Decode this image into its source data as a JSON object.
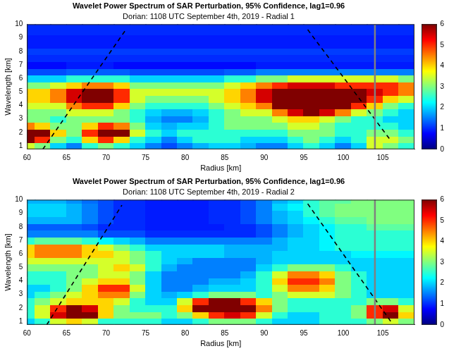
{
  "chart_data": [
    {
      "type": "heatmap",
      "title": "Wavelet Power Spectrum of SAR Perturbation, 95% Confidence, lag1=0.96",
      "subtitle": "Dorian: 1108 UTC September 4th, 2019 - Radial 1",
      "x_label": "Radius [km]",
      "y_label": "Wavelength [km]",
      "xlim": [
        60,
        109
      ],
      "ylim": [
        0.75,
        10
      ],
      "xticks": [
        60,
        65,
        70,
        75,
        80,
        85,
        90,
        95,
        100,
        105
      ],
      "yticks": [
        1,
        2,
        3,
        4,
        5,
        6,
        7,
        8,
        9,
        10
      ],
      "x": [
        60,
        62,
        64,
        66,
        68,
        70,
        72,
        74,
        76,
        78,
        80,
        82,
        84,
        86,
        88,
        90,
        92,
        94,
        96,
        98,
        100,
        102,
        104,
        106,
        108
      ],
      "y": [
        1,
        1.5,
        2,
        2.5,
        3,
        3.5,
        4,
        4.5,
        5,
        5.5,
        6,
        6.5,
        7,
        7.5,
        8,
        8.5,
        9,
        9.5,
        10
      ],
      "power": [
        [
          3.5,
          3,
          2,
          1.5,
          2.5,
          3,
          2.5,
          2,
          1.5,
          1.2,
          1.5,
          1.8,
          2,
          2,
          1.8,
          1.5,
          1.5,
          2,
          2.5,
          2,
          1.5,
          2,
          3.5,
          3,
          2.5
        ],
        [
          6,
          5,
          3,
          2.5,
          4,
          5,
          4,
          2.5,
          2,
          1.5,
          2,
          2.5,
          2.5,
          2.5,
          2,
          2,
          2,
          2.5,
          3,
          2.5,
          2,
          2.5,
          3.5,
          3.5,
          3
        ],
        [
          6,
          6,
          4,
          3,
          5,
          6,
          6,
          3.5,
          2.5,
          2,
          2.5,
          2.5,
          2.5,
          2.5,
          2.5,
          2.5,
          2.5,
          3,
          3,
          3,
          2.5,
          2.5,
          3,
          3,
          2.5
        ],
        [
          4.5,
          4,
          3,
          3,
          4,
          5,
          4.5,
          3,
          2,
          1.8,
          2,
          2,
          2.5,
          3,
          3,
          3,
          3,
          3.5,
          3.5,
          3,
          2.5,
          2.5,
          2.5,
          2.5,
          2
        ],
        [
          3,
          3,
          2.5,
          3,
          3,
          3,
          3,
          2.5,
          1.8,
          1.5,
          1.5,
          1.8,
          2.5,
          3,
          3,
          3,
          3.5,
          4,
          4,
          3.5,
          3,
          2.5,
          2.5,
          2,
          2
        ],
        [
          3,
          3,
          3,
          3.5,
          3.5,
          3.5,
          3,
          2.5,
          2,
          1.8,
          1.8,
          2,
          2.5,
          3,
          3.5,
          3.5,
          4.5,
          5.5,
          6,
          5.5,
          4.5,
          3.5,
          3,
          2.5,
          2
        ],
        [
          3.5,
          3.5,
          3.5,
          4.5,
          5,
          5,
          4,
          3,
          2.5,
          2.5,
          2.5,
          2.5,
          3,
          3.5,
          4,
          4.5,
          6,
          6,
          6,
          6,
          6,
          5,
          4,
          3,
          2.5
        ],
        [
          4,
          4,
          4.5,
          5.5,
          6,
          6,
          5,
          3.5,
          3,
          3,
          3,
          3,
          3.5,
          4,
          4.5,
          5.5,
          6,
          6,
          6,
          6,
          6,
          6,
          5,
          4,
          3.5
        ],
        [
          4,
          4,
          4.5,
          5.5,
          6,
          6,
          5,
          3.5,
          3.5,
          3.5,
          3.5,
          3.5,
          3.5,
          4,
          4.5,
          5.5,
          6,
          6,
          6,
          6,
          6,
          6,
          5.5,
          5,
          4.5
        ],
        [
          3,
          3,
          3.5,
          4,
          4.5,
          4.5,
          4,
          3,
          3,
          3,
          3,
          3,
          3,
          3.5,
          4,
          4.5,
          5,
          5.5,
          5.5,
          5.5,
          5,
          5,
          5,
          5,
          4.5
        ],
        [
          2,
          2,
          2,
          2.5,
          2.5,
          2.5,
          2.5,
          2,
          2,
          2,
          2,
          2,
          2,
          2.5,
          2.5,
          3,
          3,
          3.5,
          3.5,
          3.5,
          3.5,
          3.5,
          3.5,
          3.5,
          3
        ],
        [
          1.2,
          1.2,
          1.2,
          1.3,
          1.3,
          1.3,
          1.3,
          1.2,
          1.2,
          1.2,
          1.2,
          1.2,
          1.2,
          1.3,
          1.3,
          1.5,
          1.5,
          1.5,
          1.5,
          1.5,
          1.5,
          1.5,
          1.5,
          1.5,
          1.5
        ],
        [
          0.8,
          0.8,
          0.8,
          0.9,
          0.9,
          0.9,
          0.8,
          0.8,
          0.8,
          0.8,
          0.8,
          0.8,
          0.8,
          0.8,
          0.8,
          0.9,
          0.9,
          0.9,
          0.9,
          0.9,
          0.9,
          0.9,
          0.9,
          0.9,
          0.9
        ],
        [
          1,
          1,
          1,
          1,
          1,
          1,
          1,
          1,
          1,
          1,
          1,
          1,
          1,
          1,
          1,
          1,
          1,
          1,
          1,
          1,
          1,
          1,
          1,
          1,
          1
        ],
        [
          1.1,
          1.1,
          1.1,
          1.1,
          1.1,
          1.1,
          1.1,
          1.1,
          1.1,
          1.1,
          1.1,
          1.1,
          1.1,
          1.1,
          1.1,
          1.1,
          1.1,
          1.1,
          1.1,
          1.1,
          1.1,
          1.1,
          1.1,
          1.1,
          1.1
        ],
        [
          0.9,
          0.9,
          0.9,
          0.9,
          0.9,
          0.9,
          0.9,
          0.9,
          0.9,
          0.9,
          0.9,
          0.9,
          0.9,
          0.9,
          0.9,
          0.9,
          0.9,
          0.9,
          0.9,
          0.9,
          0.9,
          0.9,
          0.9,
          0.9,
          0.9
        ],
        [
          0.9,
          0.9,
          0.9,
          0.9,
          0.9,
          0.9,
          0.9,
          0.9,
          0.9,
          0.9,
          0.9,
          0.9,
          0.9,
          0.9,
          0.9,
          0.9,
          0.9,
          0.9,
          0.9,
          0.9,
          0.9,
          0.9,
          0.9,
          0.9,
          0.9
        ],
        [
          1,
          1,
          1,
          1,
          1,
          1,
          1,
          1,
          1,
          1,
          1,
          1,
          1,
          1,
          1,
          1,
          1,
          1,
          1,
          1,
          1,
          1,
          1,
          1,
          1
        ],
        [
          1,
          1,
          1,
          1,
          1,
          1,
          1,
          1,
          1,
          1,
          1,
          1,
          1,
          1,
          1,
          1,
          1,
          1,
          1,
          1,
          1,
          1,
          1,
          1,
          1
        ]
      ],
      "colorbar": {
        "range": [
          0,
          6
        ],
        "ticks": [
          0,
          1,
          2,
          3,
          4,
          5,
          6
        ]
      },
      "cone_of_influence": [
        {
          "x": [
            62,
            72.5
          ],
          "y": [
            0.75,
            9.6
          ],
          "color": "#000000",
          "line_style": "dashed"
        },
        {
          "x": [
            95.5,
            106
          ],
          "y": [
            9.6,
            1.4
          ],
          "color": "#000000",
          "line_style": "dashed"
        }
      ],
      "reference_line": {
        "x": 104,
        "color": "#808080"
      }
    },
    {
      "type": "heatmap",
      "title": "Wavelet Power Spectrum of SAR Perturbation, 95% Confidence, lag1=0.96",
      "subtitle": "Dorian: 1108 UTC September 4th, 2019 - Radial 2",
      "x_label": "Radius [km]",
      "y_label": "Wavelength [km]",
      "xlim": [
        60,
        109
      ],
      "ylim": [
        0.75,
        10
      ],
      "xticks": [
        60,
        65,
        70,
        75,
        80,
        85,
        90,
        95,
        100,
        105
      ],
      "yticks": [
        1,
        2,
        3,
        4,
        5,
        6,
        7,
        8,
        9,
        10
      ],
      "x": [
        60,
        62,
        64,
        66,
        68,
        70,
        72,
        74,
        76,
        78,
        80,
        82,
        84,
        86,
        88,
        90,
        92,
        94,
        96,
        98,
        100,
        102,
        104,
        106,
        108
      ],
      "y": [
        1,
        1.5,
        2,
        2.5,
        3,
        3.5,
        4,
        4.5,
        5,
        5.5,
        6,
        6.5,
        7,
        7.5,
        8,
        8.5,
        9,
        9.5,
        10
      ],
      "power": [
        [
          2,
          2.5,
          3.5,
          4,
          3.5,
          2.5,
          2.5,
          2.5,
          2.5,
          2,
          2,
          2.5,
          3,
          3,
          3,
          2.5,
          2,
          2,
          2,
          2.5,
          2.5,
          2.5,
          3,
          3.5,
          3
        ],
        [
          2.5,
          3.5,
          5.5,
          6,
          6,
          4,
          3,
          3,
          3,
          2.5,
          3,
          4,
          5,
          5.5,
          5,
          3.5,
          2.5,
          2,
          2,
          2.5,
          2.5,
          3,
          5,
          6,
          4
        ],
        [
          2.5,
          3.5,
          5,
          6,
          5.5,
          4,
          3,
          2.5,
          2.5,
          2.5,
          4,
          6,
          6,
          6,
          6,
          4.5,
          3,
          2.5,
          2.5,
          2.5,
          2.5,
          3,
          5,
          5.5,
          3.5
        ],
        [
          2.5,
          3,
          3.5,
          4,
          4,
          4,
          3.5,
          2.5,
          2,
          2,
          3.5,
          5,
          6,
          6,
          5,
          4,
          3,
          2.5,
          2.5,
          2.5,
          2.5,
          2.5,
          3,
          3,
          2.5
        ],
        [
          2,
          2.5,
          3,
          3.5,
          4,
          4.5,
          4.5,
          3,
          2,
          1.8,
          2,
          2.5,
          3,
          3,
          3,
          2.5,
          3,
          3.5,
          3.5,
          3.5,
          3,
          2.5,
          2,
          2,
          2
        ],
        [
          2,
          2,
          2.5,
          3,
          4,
          5,
          5,
          3.5,
          2,
          1.5,
          1.5,
          1.8,
          2,
          2,
          2,
          2.5,
          3.5,
          4.5,
          4.5,
          4,
          3,
          2.5,
          2,
          2,
          2
        ],
        [
          2.5,
          2.5,
          2.5,
          3,
          3.5,
          4,
          4,
          3,
          2,
          1.5,
          1.5,
          1.5,
          1.8,
          1.8,
          2,
          2.5,
          4,
          5,
          5,
          4.5,
          3,
          2.5,
          2,
          2,
          2
        ],
        [
          2.5,
          2.5,
          2.5,
          3,
          3,
          3.5,
          3.5,
          3,
          2,
          1.5,
          1.5,
          1.5,
          1.5,
          1.5,
          1.8,
          2.5,
          3.5,
          4.5,
          4.5,
          4,
          3,
          2.5,
          2,
          2,
          2
        ],
        [
          3,
          3,
          3,
          3,
          3,
          3.5,
          4,
          3.5,
          2.5,
          1.8,
          1.5,
          1.5,
          1.5,
          1.5,
          1.5,
          2,
          2.5,
          3,
          3,
          3,
          2.5,
          2,
          2,
          2,
          2
        ],
        [
          3.5,
          3.5,
          3.5,
          3.5,
          3.5,
          3.5,
          3.5,
          3,
          2.5,
          2,
          1.8,
          1.5,
          1.5,
          1.5,
          1.5,
          1.8,
          2,
          2,
          2,
          2,
          2,
          2,
          2,
          2,
          2
        ],
        [
          4,
          4.5,
          4.5,
          4.5,
          4,
          4,
          3.5,
          3,
          2.5,
          2,
          2,
          2,
          2,
          1.8,
          1.8,
          1.8,
          2,
          2,
          2,
          2,
          2,
          2.2,
          2.2,
          2.2,
          2.2
        ],
        [
          4,
          4.5,
          4.5,
          4.5,
          4,
          3.5,
          3,
          2.5,
          2,
          2,
          2,
          2,
          2,
          1.8,
          1.8,
          1.8,
          1.8,
          2,
          2,
          2.2,
          2.5,
          2.5,
          2.5,
          2.5,
          2.5
        ],
        [
          2.5,
          2.8,
          2.8,
          2.8,
          2.5,
          2.2,
          2,
          1.8,
          1.5,
          1.5,
          1.5,
          1.5,
          1.5,
          1.5,
          1.5,
          1.5,
          1.8,
          2,
          2,
          2.2,
          2.5,
          2.5,
          2.5,
          2.5,
          2.5
        ],
        [
          1.5,
          1.5,
          1.5,
          1.5,
          1.5,
          1.2,
          1.2,
          1.2,
          1,
          1,
          1,
          1,
          1,
          1,
          1,
          1.2,
          1.5,
          1.8,
          2,
          2.2,
          2.5,
          2.5,
          2.5,
          2.5,
          2.5
        ],
        [
          1.3,
          1.3,
          1.3,
          1.3,
          1.2,
          1,
          1,
          1,
          0.9,
          0.9,
          0.9,
          0.9,
          0.9,
          1,
          1,
          1.2,
          1.5,
          1.8,
          2,
          2.2,
          2.5,
          2.5,
          2.8,
          2.8,
          2.8
        ],
        [
          1.8,
          1.8,
          1.8,
          1.8,
          1.5,
          1.2,
          1,
          1,
          0.9,
          0.9,
          0.9,
          0.9,
          1,
          1,
          1.2,
          1.5,
          1.8,
          2,
          2.2,
          2.5,
          2.8,
          2.8,
          3,
          3,
          3
        ],
        [
          2,
          2,
          2,
          1.8,
          1.5,
          1.2,
          1,
          1,
          0.9,
          0.9,
          0.9,
          0.9,
          1,
          1,
          1.2,
          1.5,
          1.8,
          2,
          2.5,
          2.8,
          3,
          3,
          3,
          3,
          3
        ],
        [
          2,
          2,
          2,
          1.8,
          1.5,
          1.2,
          1,
          1,
          0.9,
          0.9,
          0.9,
          0.9,
          1,
          1,
          1.2,
          1.5,
          2,
          2.2,
          2.5,
          2.8,
          3,
          3,
          3,
          3,
          3
        ],
        [
          1.8,
          1.8,
          1.8,
          1.6,
          1.4,
          1.2,
          1,
          1,
          0.9,
          0.9,
          0.9,
          0.9,
          1,
          1,
          1.2,
          1.5,
          1.8,
          2,
          2.5,
          2.8,
          2.8,
          3,
          3,
          3,
          3
        ]
      ],
      "colorbar": {
        "range": [
          0,
          6
        ],
        "ticks": [
          0,
          1,
          2,
          3,
          4,
          5,
          6
        ]
      },
      "cone_of_influence": [
        {
          "x": [
            62.5,
            72
          ],
          "y": [
            0.75,
            9.6
          ],
          "color": "#000000",
          "line_style": "dashed"
        },
        {
          "x": [
            95.5,
            106
          ],
          "y": [
            9.7,
            1.0
          ],
          "color": "#000000",
          "line_style": "dashed"
        }
      ],
      "reference_line": {
        "x": 104,
        "color": "#808080"
      }
    }
  ]
}
